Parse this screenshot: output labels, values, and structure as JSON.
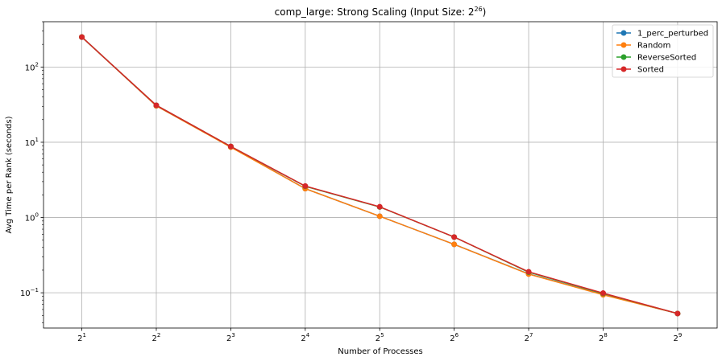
{
  "chart_data": {
    "type": "line",
    "title": "comp_large: Strong Scaling (Input Size: 2^26)",
    "title_parts": {
      "text": "comp_large: Strong Scaling (Input Size: 2",
      "exponent": "26",
      "suffix": ")"
    },
    "xlabel": "Number of Processes",
    "ylabel": "Avg Time per Rank (seconds)",
    "x_scale": "log2",
    "y_scale": "log10",
    "x": [
      2,
      4,
      8,
      16,
      32,
      64,
      128,
      256,
      512
    ],
    "x_tick_labels": [
      {
        "base": "2",
        "exp": "1"
      },
      {
        "base": "2",
        "exp": "2"
      },
      {
        "base": "2",
        "exp": "3"
      },
      {
        "base": "2",
        "exp": "4"
      },
      {
        "base": "2",
        "exp": "5"
      },
      {
        "base": "2",
        "exp": "6"
      },
      {
        "base": "2",
        "exp": "7"
      },
      {
        "base": "2",
        "exp": "8"
      },
      {
        "base": "2",
        "exp": "9"
      }
    ],
    "y_ticks": [
      0.1,
      1,
      10,
      100
    ],
    "y_tick_labels": [
      {
        "base": "10",
        "exp": "−1"
      },
      {
        "base": "10",
        "exp": "0"
      },
      {
        "base": "10",
        "exp": "1"
      },
      {
        "base": "10",
        "exp": "2"
      }
    ],
    "xlim": [
      1.4,
      740
    ],
    "ylim": [
      0.034,
      400
    ],
    "grid": true,
    "legend_position": "top-right",
    "series": [
      {
        "name": "1_perc_perturbed",
        "color": "#1f77b4",
        "values": [
          250,
          30.5,
          8.7,
          2.42,
          1.04,
          0.44,
          0.178,
          0.095,
          0.053
        ]
      },
      {
        "name": "Random",
        "color": "#ff7f0e",
        "values": [
          250,
          30.5,
          8.6,
          2.42,
          1.04,
          0.44,
          0.177,
          0.094,
          0.053
        ]
      },
      {
        "name": "ReverseSorted",
        "color": "#2ca02c",
        "values": [
          250,
          31.0,
          8.8,
          2.6,
          1.38,
          0.55,
          0.188,
          0.098,
          0.053
        ]
      },
      {
        "name": "Sorted",
        "color": "#d62728",
        "values": [
          250,
          31.0,
          8.8,
          2.62,
          1.39,
          0.55,
          0.19,
          0.099,
          0.053
        ]
      }
    ]
  }
}
